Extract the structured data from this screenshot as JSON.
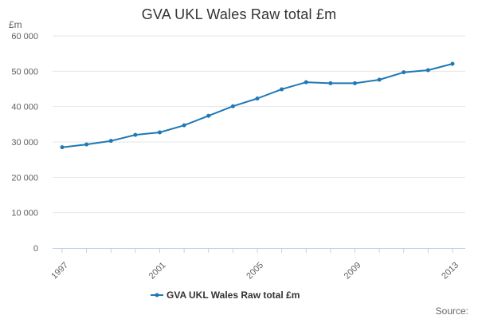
{
  "chart_data": {
    "type": "line",
    "title": "GVA UKL Wales Raw total £m",
    "ylabel": "£m",
    "xlabel": "",
    "source": "Source:",
    "x": [
      1997,
      1998,
      1999,
      2000,
      2001,
      2002,
      2003,
      2004,
      2005,
      2006,
      2007,
      2008,
      2009,
      2010,
      2011,
      2012,
      2013
    ],
    "x_tick_labels": [
      "1997",
      "2001",
      "2005",
      "2009",
      "2013"
    ],
    "y_tick_labels": [
      "0",
      "10 000",
      "20 000",
      "30 000",
      "40 000",
      "50 000",
      "60 000"
    ],
    "ylim": [
      0,
      60000
    ],
    "grid": true,
    "legend_position": "bottom",
    "series": [
      {
        "name": "GVA UKL Wales Raw total £m",
        "color": "#1f78b4",
        "values": [
          28500,
          29300,
          30300,
          32000,
          32700,
          34700,
          37400,
          40100,
          42300,
          44900,
          46900,
          46600,
          46600,
          47600,
          49700,
          50300,
          52100
        ]
      }
    ]
  }
}
